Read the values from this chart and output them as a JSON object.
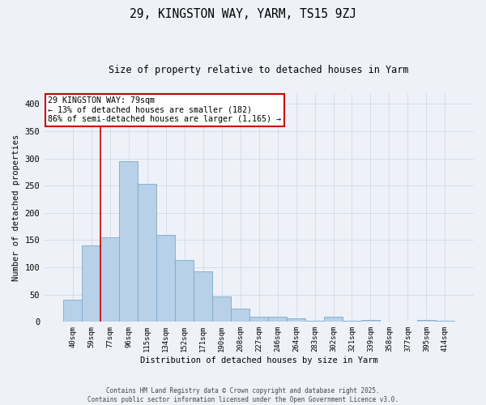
{
  "title1": "29, KINGSTON WAY, YARM, TS15 9ZJ",
  "title2": "Size of property relative to detached houses in Yarm",
  "xlabel": "Distribution of detached houses by size in Yarm",
  "ylabel": "Number of detached properties",
  "categories": [
    "40sqm",
    "59sqm",
    "77sqm",
    "96sqm",
    "115sqm",
    "134sqm",
    "152sqm",
    "171sqm",
    "190sqm",
    "208sqm",
    "227sqm",
    "246sqm",
    "264sqm",
    "283sqm",
    "302sqm",
    "321sqm",
    "339sqm",
    "358sqm",
    "377sqm",
    "395sqm",
    "414sqm"
  ],
  "values": [
    40,
    140,
    155,
    295,
    253,
    160,
    113,
    93,
    47,
    24,
    10,
    10,
    7,
    2,
    9,
    2,
    3,
    1,
    1,
    3,
    2
  ],
  "bar_color": "#b8d0e8",
  "bar_edge_color": "#7aaace",
  "vline_x": 1.5,
  "vline_color": "#cc0000",
  "annotation_text": "29 KINGSTON WAY: 79sqm\n← 13% of detached houses are smaller (182)\n86% of semi-detached houses are larger (1,165) →",
  "annotation_box_color": "#cc0000",
  "ylim": [
    0,
    420
  ],
  "yticks": [
    0,
    50,
    100,
    150,
    200,
    250,
    300,
    350,
    400
  ],
  "footer1": "Contains HM Land Registry data © Crown copyright and database right 2025.",
  "footer2": "Contains public sector information licensed under the Open Government Licence v3.0.",
  "background_color": "#eef2f8",
  "grid_color": "#c8d4e8"
}
